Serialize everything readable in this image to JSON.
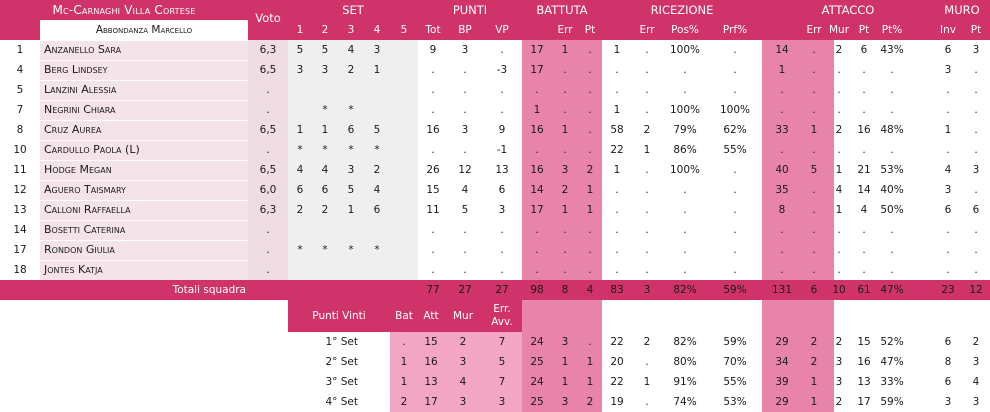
{
  "team_name": "Mc-Carnaghi Villa Cortese",
  "coach": "Abbondanza Marcello",
  "colors": {
    "header": "#d0336a",
    "vote_bg": "#f0dde4",
    "set_bg": "#efefef",
    "pink_col": "#e883a9",
    "pink_light": "#f3a6c4",
    "vote_footer": "#d0336a"
  },
  "headers": {
    "voto": "Voto",
    "set": "SET",
    "set_cols": [
      "1",
      "2",
      "3",
      "4",
      "5"
    ],
    "punti": "PUNTI",
    "punti_cols": [
      "Tot",
      "BP",
      "VP"
    ],
    "battuta": "BATTUTA",
    "battuta_cols": [
      "Err",
      "Pt"
    ],
    "ricezione": "RICEZIONE",
    "ricezione_cols": [
      "Err",
      "Pos%",
      "Prf%"
    ],
    "attacco": "ATTACCO",
    "attacco_cols": [
      "Err",
      "Mur",
      "Pt",
      "Pt%"
    ],
    "muro": "MURO",
    "muro_cols": [
      "Inv",
      "Pt"
    ]
  },
  "players": [
    {
      "num": "1",
      "name": "Anzanello Sara",
      "voto": "6,3",
      "s1": "5",
      "s2": "5",
      "s3": "4",
      "s4": "3",
      "s5": "",
      "tot": "9",
      "bp": "3",
      "vp": ".",
      "b_tot": "17",
      "b_err": "1",
      "b_pt": ".",
      "r_tot": "1",
      "r_err": ".",
      "r_pos": "100%",
      "r_prf": ".",
      "a_tot": "14",
      "a_err": ".",
      "a_mur": "2",
      "a_pt": "6",
      "a_ptp": "43%",
      "m_inv": "6",
      "m_pt": "3"
    },
    {
      "num": "4",
      "name": "Berg Lindsey",
      "voto": "6,5",
      "s1": "3",
      "s2": "3",
      "s3": "2",
      "s4": "1",
      "s5": "",
      "tot": ".",
      "bp": ".",
      "vp": "-3",
      "b_tot": "17",
      "b_err": ".",
      "b_pt": ".",
      "r_tot": ".",
      "r_err": ".",
      "r_pos": ".",
      "r_prf": ".",
      "a_tot": "1",
      "a_err": ".",
      "a_mur": ".",
      "a_pt": ".",
      "a_ptp": ".",
      "m_inv": "3",
      "m_pt": "."
    },
    {
      "num": "5",
      "name": "Lanzini Alessia",
      "voto": ".",
      "s1": "",
      "s2": "",
      "s3": "",
      "s4": "",
      "s5": "",
      "tot": ".",
      "bp": ".",
      "vp": ".",
      "b_tot": ".",
      "b_err": ".",
      "b_pt": ".",
      "r_tot": ".",
      "r_err": ".",
      "r_pos": ".",
      "r_prf": ".",
      "a_tot": ".",
      "a_err": ".",
      "a_mur": ".",
      "a_pt": ".",
      "a_ptp": ".",
      "m_inv": ".",
      "m_pt": "."
    },
    {
      "num": "7",
      "name": "Negrini Chiara",
      "voto": ".",
      "s1": "",
      "s2": "*",
      "s3": "*",
      "s4": "",
      "s5": "",
      "tot": ".",
      "bp": ".",
      "vp": ".",
      "b_tot": "1",
      "b_err": ".",
      "b_pt": ".",
      "r_tot": "1",
      "r_err": ".",
      "r_pos": "100%",
      "r_prf": "100%",
      "a_tot": ".",
      "a_err": ".",
      "a_mur": ".",
      "a_pt": ".",
      "a_ptp": ".",
      "m_inv": ".",
      "m_pt": "."
    },
    {
      "num": "8",
      "name": "Cruz Aurea",
      "voto": "6,5",
      "s1": "1",
      "s2": "1",
      "s3": "6",
      "s4": "5",
      "s5": "",
      "tot": "16",
      "bp": "3",
      "vp": "9",
      "b_tot": "16",
      "b_err": "1",
      "b_pt": ".",
      "r_tot": "58",
      "r_err": "2",
      "r_pos": "79%",
      "r_prf": "62%",
      "a_tot": "33",
      "a_err": "1",
      "a_mur": "2",
      "a_pt": "16",
      "a_ptp": "48%",
      "m_inv": "1",
      "m_pt": "."
    },
    {
      "num": "10",
      "name": "Cardullo Paola (L)",
      "voto": ".",
      "s1": "*",
      "s2": "*",
      "s3": "*",
      "s4": "*",
      "s5": "",
      "tot": ".",
      "bp": ".",
      "vp": "-1",
      "b_tot": ".",
      "b_err": ".",
      "b_pt": ".",
      "r_tot": "22",
      "r_err": "1",
      "r_pos": "86%",
      "r_prf": "55%",
      "a_tot": ".",
      "a_err": ".",
      "a_mur": ".",
      "a_pt": ".",
      "a_ptp": ".",
      "m_inv": ".",
      "m_pt": "."
    },
    {
      "num": "11",
      "name": "Hodge Megan",
      "voto": "6,5",
      "s1": "4",
      "s2": "4",
      "s3": "3",
      "s4": "2",
      "s5": "",
      "tot": "26",
      "bp": "12",
      "vp": "13",
      "b_tot": "16",
      "b_err": "3",
      "b_pt": "2",
      "r_tot": "1",
      "r_err": ".",
      "r_pos": "100%",
      "r_prf": ".",
      "a_tot": "40",
      "a_err": "5",
      "a_mur": "1",
      "a_pt": "21",
      "a_ptp": "53%",
      "m_inv": "4",
      "m_pt": "3"
    },
    {
      "num": "12",
      "name": "Aguero Taismary",
      "voto": "6,0",
      "s1": "6",
      "s2": "6",
      "s3": "5",
      "s4": "4",
      "s5": "",
      "tot": "15",
      "bp": "4",
      "vp": "6",
      "b_tot": "14",
      "b_err": "2",
      "b_pt": "1",
      "r_tot": ".",
      "r_err": ".",
      "r_pos": ".",
      "r_prf": ".",
      "a_tot": "35",
      "a_err": ".",
      "a_mur": "4",
      "a_pt": "14",
      "a_ptp": "40%",
      "m_inv": "3",
      "m_pt": "."
    },
    {
      "num": "13",
      "name": "Calloni Raffaella",
      "voto": "6,3",
      "s1": "2",
      "s2": "2",
      "s3": "1",
      "s4": "6",
      "s5": "",
      "tot": "11",
      "bp": "5",
      "vp": "3",
      "b_tot": "17",
      "b_err": "1",
      "b_pt": "1",
      "r_tot": ".",
      "r_err": ".",
      "r_pos": ".",
      "r_prf": ".",
      "a_tot": "8",
      "a_err": ".",
      "a_mur": "1",
      "a_pt": "4",
      "a_ptp": "50%",
      "m_inv": "6",
      "m_pt": "6"
    },
    {
      "num": "14",
      "name": "Bosetti Caterina",
      "voto": ".",
      "s1": "",
      "s2": "",
      "s3": "",
      "s4": "",
      "s5": "",
      "tot": ".",
      "bp": ".",
      "vp": ".",
      "b_tot": ".",
      "b_err": ".",
      "b_pt": ".",
      "r_tot": ".",
      "r_err": ".",
      "r_pos": ".",
      "r_prf": ".",
      "a_tot": ".",
      "a_err": ".",
      "a_mur": ".",
      "a_pt": ".",
      "a_ptp": ".",
      "m_inv": ".",
      "m_pt": "."
    },
    {
      "num": "17",
      "name": "Rondon Giulia",
      "voto": ".",
      "s1": "*",
      "s2": "*",
      "s3": "*",
      "s4": "*",
      "s5": "",
      "tot": ".",
      "bp": ".",
      "vp": ".",
      "b_tot": ".",
      "b_err": ".",
      "b_pt": ".",
      "r_tot": ".",
      "r_err": ".",
      "r_pos": ".",
      "r_prf": ".",
      "a_tot": ".",
      "a_err": ".",
      "a_mur": ".",
      "a_pt": ".",
      "a_ptp": ".",
      "m_inv": ".",
      "m_pt": "."
    },
    {
      "num": "18",
      "name": "Jontes Katja",
      "voto": ".",
      "s1": "",
      "s2": "",
      "s3": "",
      "s4": "",
      "s5": "",
      "tot": ".",
      "bp": ".",
      "vp": ".",
      "b_tot": ".",
      "b_err": ".",
      "b_pt": ".",
      "r_tot": ".",
      "r_err": ".",
      "r_pos": ".",
      "r_prf": ".",
      "a_tot": ".",
      "a_err": ".",
      "a_mur": ".",
      "a_pt": ".",
      "a_ptp": ".",
      "m_inv": ".",
      "m_pt": "."
    }
  ],
  "totals": {
    "label": "Totali squadra",
    "tot": "77",
    "bp": "27",
    "vp": "27",
    "b_tot": "98",
    "b_err": "8",
    "b_pt": "4",
    "r_tot": "83",
    "r_err": "3",
    "r_pos": "82%",
    "r_prf": "59%",
    "a_tot": "131",
    "a_err": "6",
    "a_mur": "10",
    "a_pt": "61",
    "a_ptp": "47%",
    "m_inv": "23",
    "m_pt": "12"
  },
  "sets_header": {
    "label": "Punti Vinti",
    "bat": "Bat",
    "att": "Att",
    "mur": "Mur",
    "err": "Err.\nAvv."
  },
  "sets": [
    {
      "label": "1° Set",
      "bat": ".",
      "att": "15",
      "mur": "2",
      "err": "7",
      "b_tot": "24",
      "b_err": "3",
      "b_pt": ".",
      "r_tot": "22",
      "r_err": "2",
      "r_pos": "82%",
      "r_prf": "59%",
      "a_tot": "29",
      "a_err": "2",
      "a_mur": "2",
      "a_pt": "15",
      "a_ptp": "52%",
      "m_inv": "6",
      "m_pt": "2"
    },
    {
      "label": "2° Set",
      "bat": "1",
      "att": "16",
      "mur": "3",
      "err": "5",
      "b_tot": "25",
      "b_err": "1",
      "b_pt": "1",
      "r_tot": "20",
      "r_err": ".",
      "r_pos": "80%",
      "r_prf": "70%",
      "a_tot": "34",
      "a_err": "2",
      "a_mur": "3",
      "a_pt": "16",
      "a_ptp": "47%",
      "m_inv": "8",
      "m_pt": "3"
    },
    {
      "label": "3° Set",
      "bat": "1",
      "att": "13",
      "mur": "4",
      "err": "7",
      "b_tot": "24",
      "b_err": "1",
      "b_pt": "1",
      "r_tot": "22",
      "r_err": "1",
      "r_pos": "91%",
      "r_prf": "55%",
      "a_tot": "39",
      "a_err": "1",
      "a_mur": "3",
      "a_pt": "13",
      "a_ptp": "33%",
      "m_inv": "6",
      "m_pt": "4"
    },
    {
      "label": "4° Set",
      "bat": "2",
      "att": "17",
      "mur": "3",
      "err": "3",
      "b_tot": "25",
      "b_err": "3",
      "b_pt": "2",
      "r_tot": "19",
      "r_err": ".",
      "r_pos": "74%",
      "r_prf": "53%",
      "a_tot": "29",
      "a_err": "1",
      "a_mur": "2",
      "a_pt": "17",
      "a_ptp": "59%",
      "m_inv": "3",
      "m_pt": "3"
    }
  ]
}
